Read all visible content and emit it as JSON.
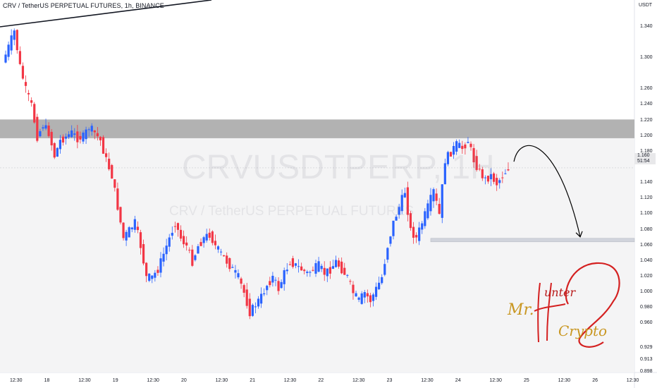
{
  "header": {
    "title": "CRV / TetherUS PERPETUAL FUTURES, 1h, BINANCE"
  },
  "watermark": {
    "symbol": "CRVUSDTPERP, 1H",
    "description": "CRV / TetherUS PERPETUAL FUTURES"
  },
  "price_axis": {
    "unit": "USDT",
    "last_price": "1.160",
    "countdown": "51:54"
  },
  "signature": {
    "mr": "Mr.",
    "hunter": "unter",
    "crypto": "Crypto"
  },
  "colors": {
    "up": "#2962ff",
    "down": "#f23645",
    "zone": "#b2b2b2",
    "target_line": "#d1d4dc",
    "text": "#131722",
    "signature_red": "#d42020",
    "signature_gold": "#c99722"
  },
  "chart_data": {
    "type": "candlestick",
    "title": "CRV / TetherUS PERPETUAL FUTURES, 1h, BINANCE",
    "ylabel": "USDT",
    "ylim": [
      0.898,
      1.375
    ],
    "y_ticks": [
      "1.340",
      "1.300",
      "1.260",
      "1.240",
      "1.220",
      "1.200",
      "1.180",
      "1.140",
      "1.120",
      "1.100",
      "1.080",
      "1.060",
      "1.040",
      "1.020",
      "1.000",
      "0.980",
      "0.960",
      "0.929",
      "0.913",
      "0.898"
    ],
    "x_ticks": [
      "12:30",
      "18",
      "12:30",
      "19",
      "12:30",
      "20",
      "12:30",
      "21",
      "12:30",
      "22",
      "12:30",
      "23",
      "12:30",
      "24",
      "12:30",
      "25",
      "12:30",
      "26",
      "12:30"
    ],
    "x_range_hours": [
      0,
      216
    ],
    "close_path": [
      [
        0,
        1.295
      ],
      [
        2,
        1.315
      ],
      [
        4,
        1.335
      ],
      [
        6,
        1.29
      ],
      [
        8,
        1.26
      ],
      [
        10,
        1.24
      ],
      [
        12,
        1.2
      ],
      [
        14,
        1.215
      ],
      [
        16,
        1.205
      ],
      [
        18,
        1.175
      ],
      [
        20,
        1.195
      ],
      [
        22,
        1.2
      ],
      [
        24,
        1.205
      ],
      [
        26,
        1.198
      ],
      [
        28,
        1.2
      ],
      [
        30,
        1.212
      ],
      [
        32,
        1.205
      ],
      [
        34,
        1.195
      ],
      [
        36,
        1.17
      ],
      [
        38,
        1.15
      ],
      [
        40,
        1.11
      ],
      [
        42,
        1.07
      ],
      [
        44,
        1.08
      ],
      [
        46,
        1.09
      ],
      [
        48,
        1.06
      ],
      [
        50,
        1.02
      ],
      [
        52,
        1.02
      ],
      [
        54,
        1.03
      ],
      [
        56,
        1.05
      ],
      [
        58,
        1.07
      ],
      [
        60,
        1.09
      ],
      [
        62,
        1.07
      ],
      [
        64,
        1.06
      ],
      [
        66,
        1.04
      ],
      [
        68,
        1.06
      ],
      [
        70,
        1.07
      ],
      [
        72,
        1.075
      ],
      [
        74,
        1.06
      ],
      [
        76,
        1.05
      ],
      [
        78,
        1.04
      ],
      [
        80,
        1.03
      ],
      [
        82,
        1.02
      ],
      [
        84,
        1.0
      ],
      [
        86,
        0.975
      ],
      [
        88,
        0.985
      ],
      [
        90,
        0.995
      ],
      [
        92,
        1.01
      ],
      [
        94,
        1.02
      ],
      [
        96,
        1.005
      ],
      [
        98,
        1.025
      ],
      [
        100,
        1.04
      ],
      [
        102,
        1.035
      ],
      [
        104,
        1.03
      ],
      [
        106,
        1.025
      ],
      [
        108,
        1.03
      ],
      [
        110,
        1.035
      ],
      [
        112,
        1.025
      ],
      [
        114,
        1.03
      ],
      [
        116,
        1.04
      ],
      [
        118,
        1.03
      ],
      [
        120,
        1.02
      ],
      [
        122,
        1.0
      ],
      [
        124,
        0.99
      ],
      [
        126,
        1.0
      ],
      [
        128,
        0.99
      ],
      [
        130,
        1.005
      ],
      [
        132,
        1.02
      ],
      [
        134,
        1.06
      ],
      [
        136,
        1.09
      ],
      [
        138,
        1.11
      ],
      [
        140,
        1.13
      ],
      [
        142,
        1.08
      ],
      [
        144,
        1.07
      ],
      [
        146,
        1.09
      ],
      [
        148,
        1.11
      ],
      [
        150,
        1.13
      ],
      [
        152,
        1.1
      ],
      [
        154,
        1.17
      ],
      [
        156,
        1.18
      ],
      [
        158,
        1.19
      ],
      [
        160,
        1.185
      ],
      [
        162,
        1.195
      ],
      [
        164,
        1.17
      ],
      [
        166,
        1.155
      ],
      [
        168,
        1.145
      ],
      [
        170,
        1.15
      ],
      [
        172,
        1.14
      ],
      [
        174,
        1.15
      ],
      [
        176,
        1.16
      ]
    ],
    "resistance_zone": [
      1.198,
      1.222
    ],
    "target_level": 1.068,
    "projection": "down-arrow toward target"
  }
}
